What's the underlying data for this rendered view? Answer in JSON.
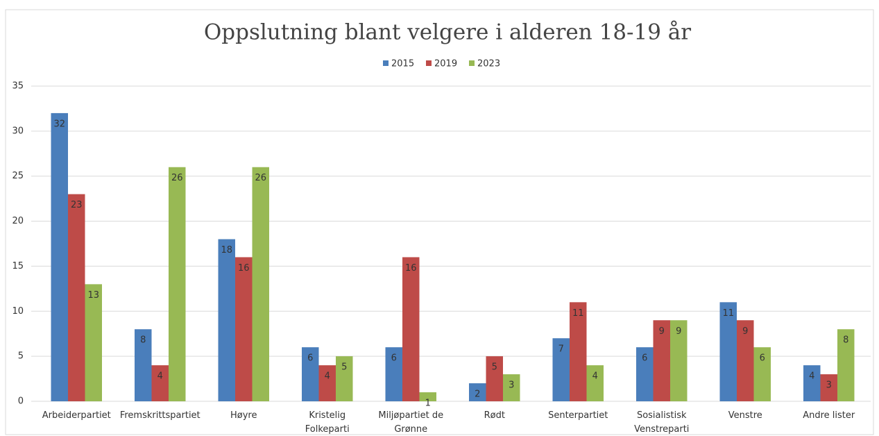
{
  "chart_data": {
    "type": "bar",
    "title": "Oppslutning blant velgere i alderen 18-19 år",
    "categories": [
      "Arbeiderpartiet",
      "Fremskrittspartiet",
      "Høyre",
      "Kristelig\nFolkeparti",
      "Miljøpartiet de\nGrønne",
      "Rødt",
      "Senterpartiet",
      "Sosialistisk\nVenstreparti",
      "Venstre",
      "Andre lister"
    ],
    "series": [
      {
        "name": "2015",
        "color": "#4a7ebb",
        "values": [
          32,
          8,
          18,
          6,
          6,
          2,
          7,
          6,
          11,
          4
        ]
      },
      {
        "name": "2019",
        "color": "#be4b48",
        "values": [
          23,
          4,
          16,
          4,
          16,
          5,
          11,
          9,
          9,
          3
        ]
      },
      {
        "name": "2023",
        "color": "#98b954",
        "values": [
          13,
          26,
          26,
          5,
          1,
          3,
          4,
          9,
          6,
          8
        ]
      }
    ],
    "ylim": [
      0,
      35
    ],
    "yticks": [
      0,
      5,
      10,
      15,
      20,
      25,
      30,
      35
    ],
    "grid": true,
    "legend": "top"
  }
}
